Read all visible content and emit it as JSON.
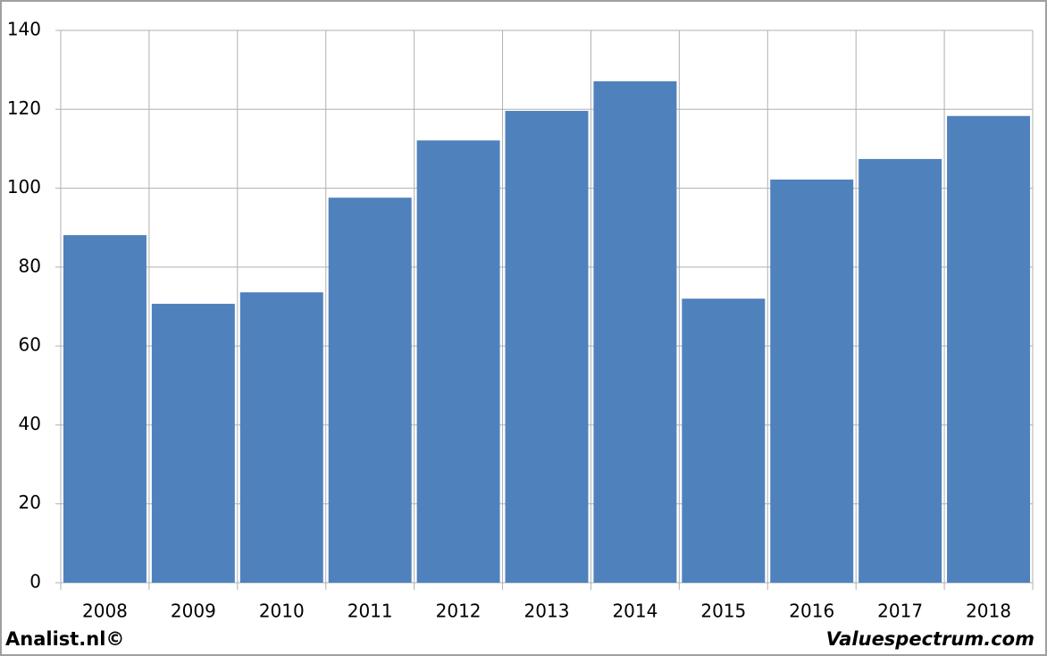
{
  "chart_data": {
    "type": "bar",
    "categories": [
      "2008",
      "2009",
      "2010",
      "2011",
      "2012",
      "2013",
      "2014",
      "2015",
      "2016",
      "2017",
      "2018"
    ],
    "values": [
      88.1,
      70.7,
      73.6,
      97.6,
      112.1,
      119.6,
      127.1,
      72.0,
      102.2,
      107.4,
      118.3
    ],
    "color": "#4f81bd",
    "ylim": [
      0,
      140
    ],
    "yticks": [
      0,
      20,
      40,
      60,
      80,
      100,
      120,
      140
    ],
    "grid": true
  },
  "footer": {
    "left": "Analist.nl©",
    "right": "Valuespectrum.com"
  }
}
